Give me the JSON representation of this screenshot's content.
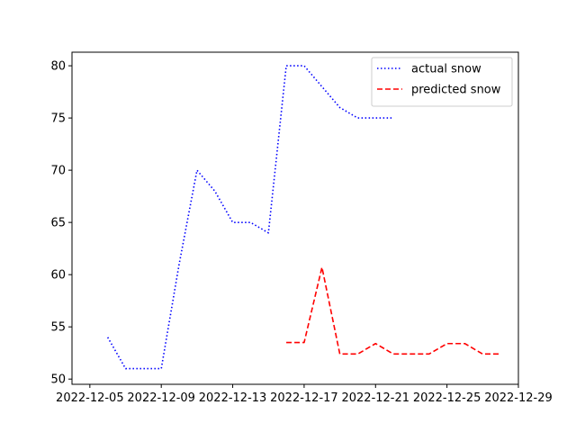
{
  "chart_data": {
    "type": "line",
    "x_axis_type": "date",
    "xlim": [
      "2022-12-04",
      "2022-12-29"
    ],
    "ylim": [
      49.5,
      81.3
    ],
    "x_ticks": [
      "2022-12-05",
      "2022-12-09",
      "2022-12-13",
      "2022-12-17",
      "2022-12-21",
      "2022-12-25",
      "2022-12-29"
    ],
    "y_ticks": [
      50,
      55,
      60,
      65,
      70,
      75,
      80
    ],
    "legend_position": "top-right",
    "grid": false,
    "series": [
      {
        "name": "actual snow",
        "color": "#0000ff",
        "line_style": "dotted",
        "points": [
          {
            "x": "2022-12-06",
            "y": 54
          },
          {
            "x": "2022-12-07",
            "y": 51
          },
          {
            "x": "2022-12-08",
            "y": 51
          },
          {
            "x": "2022-12-09",
            "y": 51
          },
          {
            "x": "2022-12-10",
            "y": 61
          },
          {
            "x": "2022-12-11",
            "y": 70
          },
          {
            "x": "2022-12-12",
            "y": 68
          },
          {
            "x": "2022-12-13",
            "y": 65
          },
          {
            "x": "2022-12-14",
            "y": 65
          },
          {
            "x": "2022-12-15",
            "y": 64
          },
          {
            "x": "2022-12-16",
            "y": 80
          },
          {
            "x": "2022-12-17",
            "y": 80
          },
          {
            "x": "2022-12-18",
            "y": 78
          },
          {
            "x": "2022-12-19",
            "y": 76
          },
          {
            "x": "2022-12-20",
            "y": 75
          },
          {
            "x": "2022-12-21",
            "y": 75
          },
          {
            "x": "2022-12-22",
            "y": 75
          }
        ]
      },
      {
        "name": "predicted snow",
        "color": "#ff0000",
        "line_style": "dashed",
        "points": [
          {
            "x": "2022-12-16",
            "y": 53.5
          },
          {
            "x": "2022-12-17",
            "y": 53.5
          },
          {
            "x": "2022-12-18",
            "y": 60.7
          },
          {
            "x": "2022-12-19",
            "y": 52.4
          },
          {
            "x": "2022-12-20",
            "y": 52.4
          },
          {
            "x": "2022-12-21",
            "y": 53.4
          },
          {
            "x": "2022-12-22",
            "y": 52.4
          },
          {
            "x": "2022-12-23",
            "y": 52.4
          },
          {
            "x": "2022-12-24",
            "y": 52.4
          },
          {
            "x": "2022-12-25",
            "y": 53.4
          },
          {
            "x": "2022-12-26",
            "y": 53.4
          },
          {
            "x": "2022-12-27",
            "y": 52.4
          },
          {
            "x": "2022-12-28",
            "y": 52.4
          }
        ]
      }
    ]
  }
}
